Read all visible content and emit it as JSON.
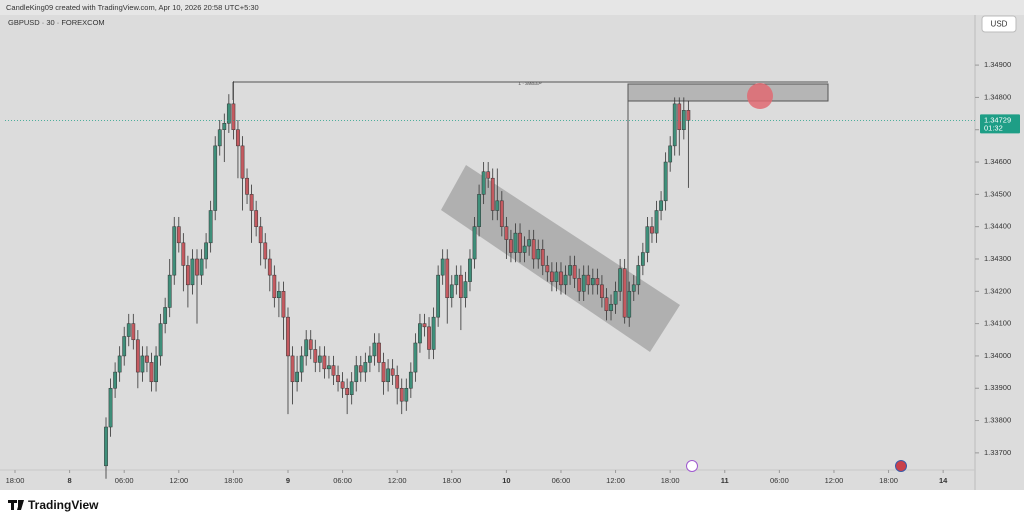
{
  "header": "CandleKing09 created with TradingView.com, Apr 10, 2026 20:58 UTC+5:30",
  "brand": "TradingView",
  "chart_data": {
    "type": "candlestick",
    "title": "GBPUSD · 30 · FOREXCOM",
    "currency": "USD",
    "countdown": "01:32",
    "annotations": [
      "L - SWEEP"
    ],
    "colors": {
      "up": "#3f8f7a",
      "down": "#c45a60",
      "outline": "#333333",
      "price_line": "#1e9e86"
    },
    "x": [
      20,
      21,
      22,
      23,
      24,
      25,
      26,
      27,
      28,
      29,
      30,
      31,
      32,
      33,
      34,
      35,
      36,
      37,
      38,
      39,
      40,
      41,
      42,
      43,
      44,
      45,
      46,
      47,
      48,
      49,
      50,
      51,
      52,
      53,
      54,
      55,
      56,
      57,
      58,
      59,
      60,
      61,
      62,
      63,
      64,
      65,
      66,
      67,
      68,
      69,
      70,
      71,
      72,
      73,
      74,
      75,
      76,
      77,
      78,
      79,
      80,
      81,
      82,
      83,
      84,
      85,
      86,
      87,
      88,
      89,
      90,
      91,
      92,
      93,
      94,
      95,
      96,
      97,
      98,
      99,
      100,
      101,
      102,
      103,
      104,
      105,
      106,
      107,
      108,
      109,
      110,
      111,
      112,
      113,
      114,
      115,
      116,
      117,
      118,
      119,
      120,
      121,
      122,
      123,
      124,
      125,
      126,
      127,
      128,
      129,
      130,
      131,
      132,
      133,
      134,
      135,
      136,
      137,
      138,
      139,
      140,
      141,
      142,
      143,
      144,
      145,
      146,
      147,
      148
    ],
    "open": [
      1.3366,
      1.3378,
      1.339,
      1.3395,
      1.34,
      1.3406,
      1.341,
      1.3405,
      1.3395,
      1.34,
      1.3398,
      1.3392,
      1.34,
      1.341,
      1.3415,
      1.3425,
      1.344,
      1.3435,
      1.3428,
      1.3422,
      1.343,
      1.3425,
      1.343,
      1.3435,
      1.3445,
      1.3465,
      1.347,
      1.3472,
      1.3478,
      1.347,
      1.3465,
      1.3455,
      1.345,
      1.3445,
      1.344,
      1.3435,
      1.343,
      1.3425,
      1.3418,
      1.342,
      1.3412,
      1.34,
      1.3392,
      1.3395,
      1.34,
      1.3405,
      1.3402,
      1.3398,
      1.34,
      1.3396,
      1.3397,
      1.3394,
      1.3392,
      1.339,
      1.3388,
      1.3392,
      1.3397,
      1.3395,
      1.3398,
      1.34,
      1.3404,
      1.3398,
      1.3392,
      1.3396,
      1.3394,
      1.339,
      1.3386,
      1.339,
      1.3395,
      1.3404,
      1.341,
      1.3409,
      1.3402,
      1.3412,
      1.3425,
      1.343,
      1.3418,
      1.3422,
      1.3425,
      1.3418,
      1.3423,
      1.343,
      1.344,
      1.345,
      1.3457,
      1.3455,
      1.3445,
      1.3448,
      1.344,
      1.3436,
      1.3432,
      1.3438,
      1.3432,
      1.3434,
      1.3436,
      1.343,
      1.3433,
      1.3428,
      1.3426,
      1.3423,
      1.3426,
      1.3422,
      1.3425,
      1.3428,
      1.3424,
      1.342,
      1.3425,
      1.3422,
      1.3424,
      1.3422,
      1.3418,
      1.3414,
      1.3416,
      1.342,
      1.3427,
      1.3412,
      1.342,
      1.3422,
      1.3428,
      1.3432,
      1.344,
      1.3438,
      1.3445,
      1.3448,
      1.346,
      1.3465,
      1.3478,
      1.347,
      1.3476
    ],
    "high": [
      1.3381,
      1.3393,
      1.3398,
      1.3403,
      1.3409,
      1.3413,
      1.3413,
      1.3408,
      1.3403,
      1.3403,
      1.3401,
      1.3403,
      1.3413,
      1.3418,
      1.343,
      1.3443,
      1.3443,
      1.3438,
      1.3431,
      1.3433,
      1.3433,
      1.3433,
      1.3438,
      1.3448,
      1.3468,
      1.3473,
      1.3475,
      1.3481,
      1.3485,
      1.3473,
      1.3468,
      1.3458,
      1.3453,
      1.3448,
      1.3443,
      1.3438,
      1.3433,
      1.3428,
      1.3423,
      1.3423,
      1.3415,
      1.3403,
      1.34,
      1.3403,
      1.3408,
      1.3408,
      1.3405,
      1.3403,
      1.3403,
      1.34,
      1.34,
      1.3397,
      1.3395,
      1.3393,
      1.3395,
      1.34,
      1.34,
      1.3401,
      1.3403,
      1.3407,
      1.3407,
      1.3401,
      1.3399,
      1.3399,
      1.3397,
      1.3393,
      1.3393,
      1.3398,
      1.3407,
      1.3413,
      1.3413,
      1.3412,
      1.3415,
      1.3428,
      1.3433,
      1.3433,
      1.3425,
      1.3428,
      1.3428,
      1.3426,
      1.3433,
      1.3443,
      1.3453,
      1.346,
      1.346,
      1.3458,
      1.3458,
      1.3451,
      1.3443,
      1.3439,
      1.3441,
      1.3441,
      1.3437,
      1.3439,
      1.3439,
      1.3436,
      1.3436,
      1.3431,
      1.3429,
      1.3429,
      1.3429,
      1.3428,
      1.3431,
      1.3431,
      1.3427,
      1.3428,
      1.3428,
      1.3427,
      1.3427,
      1.3425,
      1.3421,
      1.3419,
      1.3423,
      1.343,
      1.343,
      1.3423,
      1.3425,
      1.3431,
      1.3435,
      1.3443,
      1.3443,
      1.3448,
      1.3451,
      1.3463,
      1.3468,
      1.348,
      1.348,
      1.348,
      1.3479
    ],
    "low": [
      1.3362,
      1.3375,
      1.3387,
      1.3392,
      1.3397,
      1.3403,
      1.3402,
      1.339,
      1.3392,
      1.3395,
      1.3389,
      1.3389,
      1.3397,
      1.3407,
      1.3412,
      1.3422,
      1.3432,
      1.342,
      1.3415,
      1.3419,
      1.341,
      1.3422,
      1.3427,
      1.3432,
      1.3442,
      1.3462,
      1.346,
      1.3469,
      1.3467,
      1.3455,
      1.3445,
      1.3447,
      1.3435,
      1.3437,
      1.3428,
      1.3427,
      1.342,
      1.3415,
      1.3412,
      1.3405,
      1.3382,
      1.3385,
      1.3389,
      1.3392,
      1.3397,
      1.3399,
      1.3395,
      1.3395,
      1.3393,
      1.3393,
      1.3391,
      1.3389,
      1.3387,
      1.3382,
      1.3385,
      1.3389,
      1.3392,
      1.3392,
      1.3395,
      1.3397,
      1.3395,
      1.3388,
      1.3389,
      1.3391,
      1.3385,
      1.3382,
      1.3383,
      1.3387,
      1.3392,
      1.3401,
      1.3406,
      1.3399,
      1.3399,
      1.3409,
      1.3422,
      1.341,
      1.3415,
      1.3419,
      1.3408,
      1.3415,
      1.342,
      1.3427,
      1.3437,
      1.3447,
      1.3452,
      1.3442,
      1.3442,
      1.3437,
      1.343,
      1.3429,
      1.3429,
      1.3429,
      1.3429,
      1.3431,
      1.3427,
      1.3427,
      1.3425,
      1.3423,
      1.342,
      1.342,
      1.3419,
      1.3419,
      1.3422,
      1.3421,
      1.3417,
      1.3417,
      1.3419,
      1.3419,
      1.3419,
      1.3415,
      1.3411,
      1.3411,
      1.3413,
      1.3417,
      1.341,
      1.3409,
      1.3417,
      1.3419,
      1.3425,
      1.3429,
      1.3435,
      1.3435,
      1.3442,
      1.3445,
      1.3457,
      1.3462,
      1.3462,
      1.3467,
      1.3452
    ],
    "close": [
      1.3378,
      1.339,
      1.3395,
      1.34,
      1.3406,
      1.341,
      1.3405,
      1.3395,
      1.34,
      1.3398,
      1.3392,
      1.34,
      1.341,
      1.3415,
      1.3425,
      1.344,
      1.3435,
      1.3428,
      1.3422,
      1.343,
      1.3425,
      1.343,
      1.3435,
      1.3445,
      1.3465,
      1.347,
      1.3472,
      1.3478,
      1.347,
      1.3465,
      1.3455,
      1.345,
      1.3445,
      1.344,
      1.3435,
      1.343,
      1.3425,
      1.3418,
      1.342,
      1.3412,
      1.34,
      1.3392,
      1.3395,
      1.34,
      1.3405,
      1.3402,
      1.3398,
      1.34,
      1.3396,
      1.3397,
      1.3394,
      1.3392,
      1.339,
      1.3388,
      1.3392,
      1.3397,
      1.3395,
      1.3398,
      1.34,
      1.3404,
      1.3398,
      1.3392,
      1.3396,
      1.3394,
      1.339,
      1.3386,
      1.339,
      1.3395,
      1.3404,
      1.341,
      1.3409,
      1.3402,
      1.3412,
      1.3425,
      1.343,
      1.3418,
      1.3422,
      1.3425,
      1.3418,
      1.3423,
      1.343,
      1.344,
      1.345,
      1.3457,
      1.3455,
      1.3445,
      1.3448,
      1.344,
      1.3436,
      1.3432,
      1.3438,
      1.3432,
      1.3434,
      1.3436,
      1.343,
      1.3433,
      1.3428,
      1.3426,
      1.3423,
      1.3426,
      1.3422,
      1.3425,
      1.3428,
      1.3424,
      1.342,
      1.3425,
      1.3422,
      1.3424,
      1.3422,
      1.3418,
      1.3414,
      1.3416,
      1.342,
      1.3427,
      1.3412,
      1.342,
      1.3422,
      1.3428,
      1.3432,
      1.344,
      1.3438,
      1.3445,
      1.3448,
      1.346,
      1.3465,
      1.3478,
      1.347,
      1.3476,
      1.34729
    ],
    "xlim": [
      -2.2,
      211
    ],
    "xticks": [
      {
        "value": 0,
        "label": "18:00"
      },
      {
        "value": 12,
        "label": "8"
      },
      {
        "value": 24,
        "label": "06:00"
      },
      {
        "value": 36,
        "label": "12:00"
      },
      {
        "value": 48,
        "label": "18:00"
      },
      {
        "value": 60,
        "label": "9"
      },
      {
        "value": 72,
        "label": "06:00"
      },
      {
        "value": 84,
        "label": "12:00"
      },
      {
        "value": 96,
        "label": "18:00"
      },
      {
        "value": 108,
        "label": "10"
      },
      {
        "value": 120,
        "label": "06:00"
      },
      {
        "value": 132,
        "label": "12:00"
      },
      {
        "value": 144,
        "label": "18:00"
      },
      {
        "value": 156,
        "label": "11"
      },
      {
        "value": 168,
        "label": "06:00"
      },
      {
        "value": 180,
        "label": "12:00"
      },
      {
        "value": 192,
        "label": "18:00"
      },
      {
        "value": 204,
        "label": "14"
      }
    ],
    "ylim": [
      1.33647,
      1.35055
    ],
    "yticks": [
      {
        "value": 1.349,
        "label": "1.34900"
      },
      {
        "value": 1.348,
        "label": "1.34800"
      },
      {
        "value": 1.347,
        "label": "1.34700"
      },
      {
        "value": 1.346,
        "label": "1.34600"
      },
      {
        "value": 1.345,
        "label": "1.34500"
      },
      {
        "value": 1.344,
        "label": "1.34400"
      },
      {
        "value": 1.343,
        "label": "1.34300"
      },
      {
        "value": 1.342,
        "label": "1.34200"
      },
      {
        "value": 1.341,
        "label": "1.34100"
      },
      {
        "value": 1.34,
        "label": "1.34000"
      },
      {
        "value": 1.339,
        "label": "1.33900"
      },
      {
        "value": 1.338,
        "label": "1.33800"
      },
      {
        "value": 1.337,
        "label": "1.33700"
      }
    ]
  }
}
